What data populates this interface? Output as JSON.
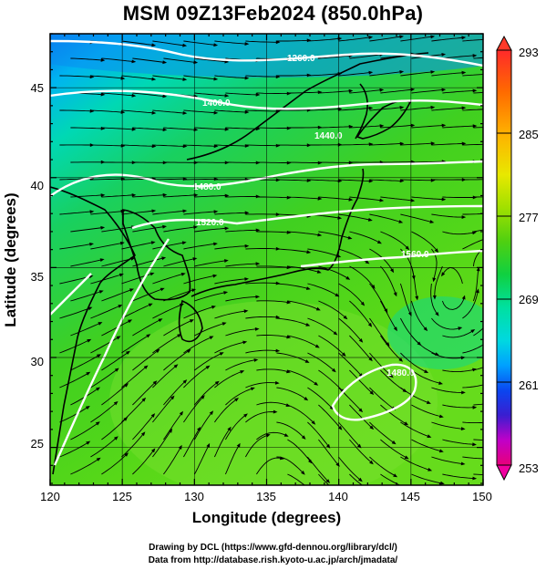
{
  "title": "MSM 09Z13Feb2024 (850.0hPa)",
  "axes": {
    "xlabel": "Longitude (degrees)",
    "ylabel": "Latitude  (degrees)",
    "xticks": [
      "120",
      "125",
      "130",
      "135",
      "140",
      "145",
      "150"
    ],
    "yticks": [
      "25",
      "30",
      "35",
      "40",
      "45"
    ]
  },
  "colorbar": {
    "labels": [
      "293",
      "285",
      "277",
      "269",
      "261",
      "253"
    ],
    "colors": [
      "#e8007a",
      "#c000c8",
      "#3a1ed0",
      "#0a46f0",
      "#00a0ff",
      "#00d8e0",
      "#00e0a0",
      "#10d040",
      "#50d010",
      "#a0e000",
      "#e8e800",
      "#ffb000",
      "#ff6a00",
      "#ff2a2a"
    ]
  },
  "contour_labels": [
    "1260.0",
    "1400.0",
    "1440.0",
    "1480.0",
    "1520.0",
    "1560.0",
    "1480.0"
  ],
  "credits": {
    "line1": "Drawing by DCL (https://www.gfd-dennou.org/library/dcl/)",
    "line2": "Data from http://database.rish.kyoto-u.ac.jp/arch/jmadata/"
  }
}
